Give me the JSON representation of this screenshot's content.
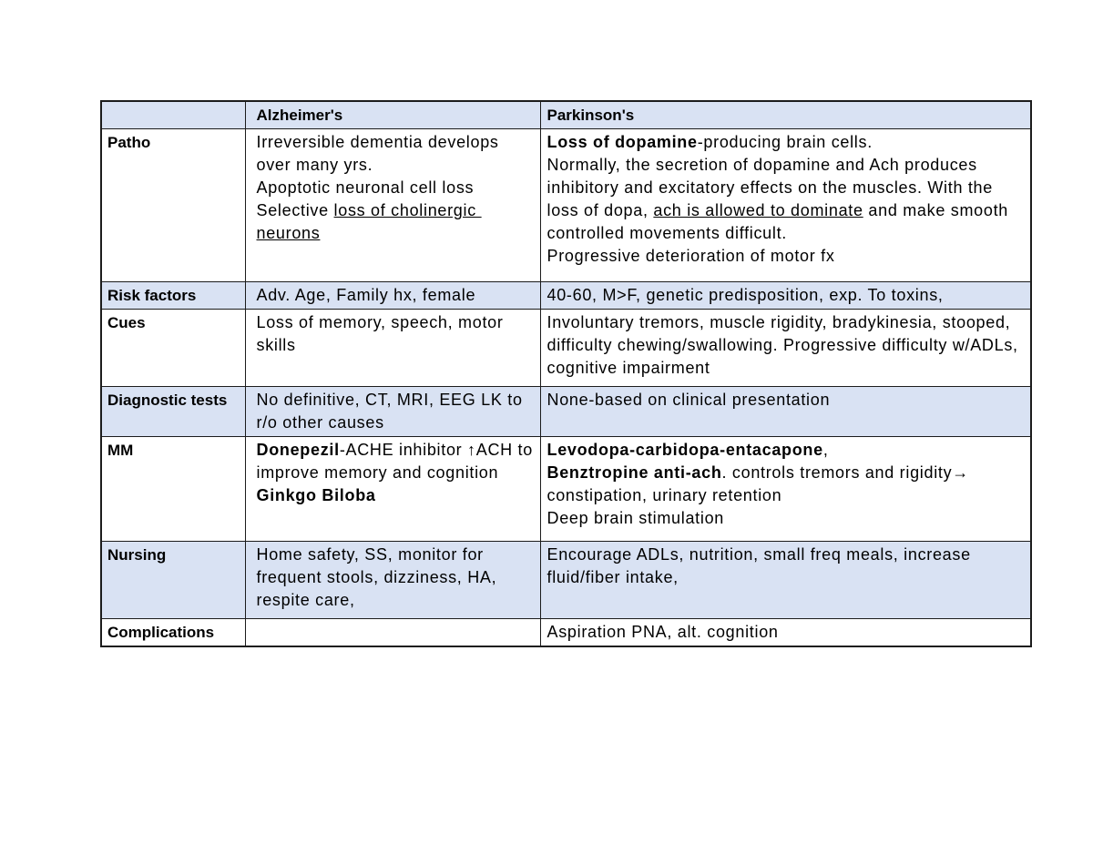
{
  "colors": {
    "row_fill": "#d9e2f3",
    "border": "#1c1c1c",
    "page_bg": "#ffffff",
    "text": "#000000"
  },
  "table": {
    "header": {
      "columns": [
        "",
        "Alzheimer's",
        "Parkinson's"
      ]
    },
    "rows": [
      {
        "key": "patho",
        "label": "Patho",
        "shaded": false,
        "alzheimers": [
          [
            {
              "t": "Irreversible dementia develops"
            }
          ],
          [
            {
              "t": "over many yrs."
            }
          ],
          [
            {
              "t": "Apoptotic neuronal cell loss"
            }
          ],
          [
            {
              "t": "Selective "
            },
            {
              "t": "loss of cholinergic ",
              "u": true
            }
          ],
          [
            {
              "t": "neurons",
              "u": true
            }
          ]
        ],
        "parkinsons": [
          [
            {
              "t": "Loss of dopamine",
              "b": true
            },
            {
              "t": "-producing brain cells."
            }
          ],
          [
            {
              "t": "Normally, the secretion of dopamine and Ach produces"
            }
          ],
          [
            {
              "t": "inhibitory and excitatory effects on the muscles. With the"
            }
          ],
          [
            {
              "t": "loss of dopa, "
            },
            {
              "t": "ach is allowed to dominate",
              "u": true
            },
            {
              "t": " and make smooth"
            }
          ],
          [
            {
              "t": "controlled movements difficult."
            }
          ],
          [
            {
              "t": "Progressive deterioration of motor fx"
            }
          ]
        ]
      },
      {
        "key": "risk-factors",
        "label": "Risk factors",
        "shaded": true,
        "alzheimers": [
          [
            {
              "t": "Adv. Age, Family hx, female"
            }
          ]
        ],
        "parkinsons": [
          [
            {
              "t": "40-60, M>F, genetic predisposition, exp. To toxins,"
            }
          ]
        ]
      },
      {
        "key": "cues",
        "label": "Cues",
        "shaded": false,
        "alzheimers": [
          [
            {
              "t": "Loss of memory, speech, motor"
            }
          ],
          [
            {
              "t": "skills"
            }
          ]
        ],
        "parkinsons": [
          [
            {
              "t": "Involuntary tremors, muscle rigidity, bradykinesia, stooped,"
            }
          ],
          [
            {
              "t": "difficulty chewing/swallowing. Progressive difficulty w/ADLs,"
            }
          ],
          [
            {
              "t": "cognitive impairment"
            }
          ]
        ]
      },
      {
        "key": "diagnostic-tests",
        "label": "Diagnostic tests",
        "shaded": true,
        "alzheimers": [
          [
            {
              "t": "No definitive, CT, MRI, EEG LK to"
            }
          ],
          [
            {
              "t": "r/o other causes"
            }
          ]
        ],
        "parkinsons": [
          [
            {
              "t": "None-based on clinical presentation"
            }
          ]
        ]
      },
      {
        "key": "mm",
        "label": "MM",
        "shaded": false,
        "alzheimers": [
          [
            {
              "t": "Donepezil",
              "b": true
            },
            {
              "t": "-ACHE inhibitor ↑ACH to"
            }
          ],
          [
            {
              "t": "improve memory and cognition"
            }
          ],
          [
            {
              "t": "Ginkgo Biloba",
              "b": true
            }
          ]
        ],
        "parkinsons": [
          [
            {
              "t": "Levodopa-carbidopa-entacapone",
              "b": true
            },
            {
              "t": ","
            }
          ],
          [
            {
              "t": "Benztropine anti-ach",
              "b": true
            },
            {
              "t": ". controls tremors and rigidity→"
            }
          ],
          [
            {
              "t": "constipation, urinary retention"
            }
          ],
          [
            {
              "t": "Deep brain stimulation"
            }
          ]
        ]
      },
      {
        "key": "nursing",
        "label": "Nursing",
        "shaded": true,
        "alzheimers": [
          [
            {
              "t": "Home safety, SS, monitor for"
            }
          ],
          [
            {
              "t": "frequent stools, dizziness, HA,"
            }
          ],
          [
            {
              "t": "respite care,"
            }
          ]
        ],
        "parkinsons": [
          [
            {
              "t": "Encourage ADLs, nutrition, small freq meals, increase"
            }
          ],
          [
            {
              "t": "fluid/fiber intake,"
            }
          ]
        ]
      },
      {
        "key": "complications",
        "label": "Complications",
        "shaded": false,
        "alzheimers": [],
        "parkinsons": [
          [
            {
              "t": "Aspiration PNA, alt. cognition"
            }
          ]
        ]
      }
    ]
  }
}
